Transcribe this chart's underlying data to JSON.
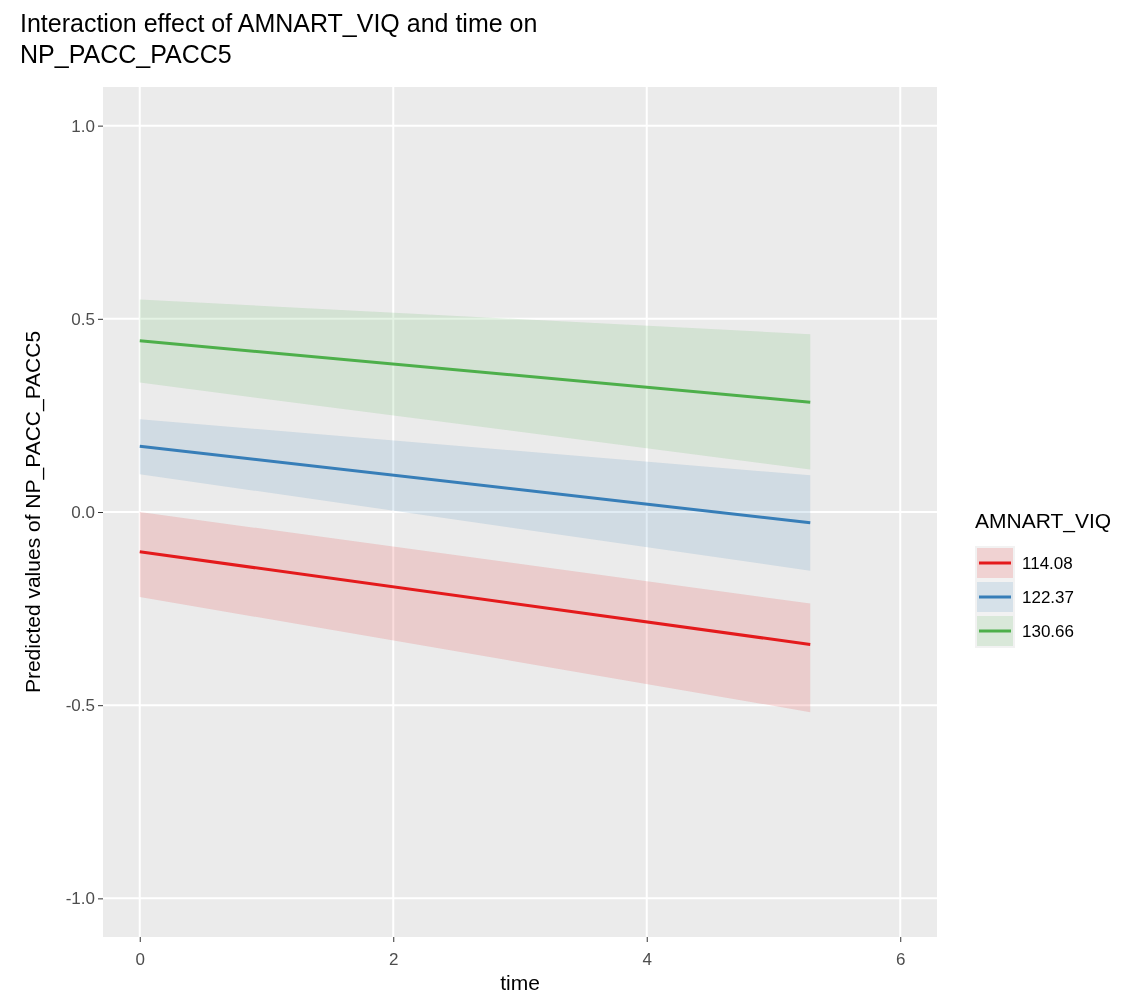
{
  "chart_data": {
    "type": "line",
    "title": "Interaction effect of AMNART_VIQ and time on NP_PACC_PACC5",
    "xlabel": "time",
    "ylabel": "Predicted values of NP_PACC_PACC5",
    "legend_title": "AMNART_VIQ",
    "x": [
      0,
      5.29
    ],
    "series": [
      {
        "name": "114.08",
        "color": "#e41a1c",
        "values": [
          -0.103,
          -0.343
        ],
        "lower": [
          -0.22,
          -0.518
        ],
        "upper": [
          0.0,
          -0.237
        ]
      },
      {
        "name": "122.37",
        "color": "#377eb8",
        "values": [
          0.17,
          -0.028
        ],
        "lower": [
          0.098,
          -0.152
        ],
        "upper": [
          0.24,
          0.095
        ]
      },
      {
        "name": "130.66",
        "color": "#4daf4a",
        "values": [
          0.443,
          0.284
        ],
        "lower": [
          0.335,
          0.11
        ],
        "upper": [
          0.55,
          0.46
        ]
      }
    ],
    "xlim": [
      -0.29,
      6.29
    ],
    "ylim": [
      -1.1,
      1.1
    ],
    "xticks": [
      0,
      2,
      4,
      6
    ],
    "yticks": [
      {
        "value": -1,
        "label": "-1.0"
      },
      {
        "value": -0.5,
        "label": "-0.5"
      },
      {
        "value": 0,
        "label": "0.0"
      },
      {
        "value": 0.5,
        "label": "0.5"
      },
      {
        "value": 1,
        "label": "1.0"
      }
    ],
    "grid": true,
    "legend": "right",
    "line_style": "solid",
    "marker": "none"
  }
}
